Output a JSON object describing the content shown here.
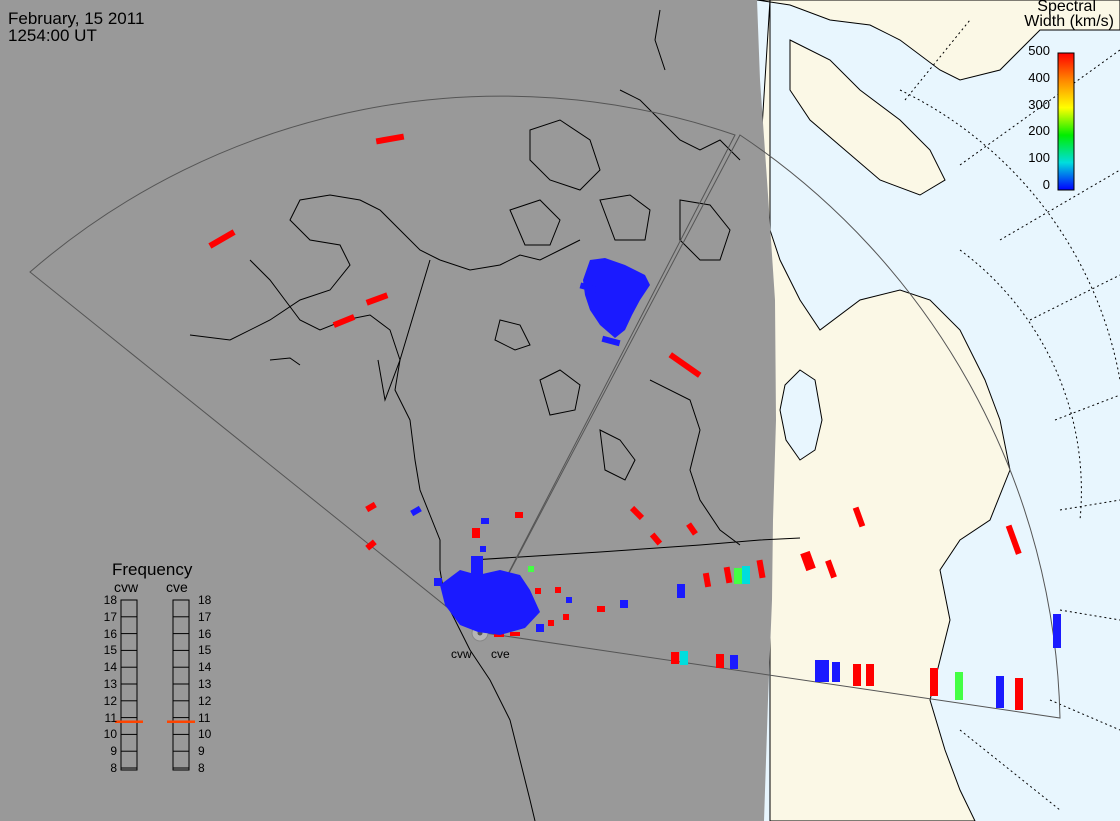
{
  "title": {
    "date": "February, 15 2011",
    "time": "1254:00 UT"
  },
  "colorbar": {
    "title_line1": "Spectral",
    "title_line2": "Width (km/s)",
    "ticks": [
      "500",
      "400",
      "300",
      "200",
      "100",
      "0"
    ],
    "colors": [
      "#ff0000",
      "#ff8800",
      "#ffff00",
      "#00ee00",
      "#00dddd",
      "#0000ff"
    ],
    "min": 0,
    "max": 500
  },
  "radars": {
    "west_label": "cvw",
    "east_label": "cve"
  },
  "frequency_panel": {
    "title": "Frequency",
    "col_west": "cvw",
    "col_east": "cve",
    "ticks": [
      "18",
      "17",
      "16",
      "15",
      "14",
      "13",
      "12",
      "11",
      "10",
      "9",
      "8"
    ],
    "cvw_value_mhz": 10.75,
    "cve_value_mhz": 10.75,
    "marker_color": "#ff4400"
  },
  "colors": {
    "night": "#999999",
    "day_land": "#fbf8e6",
    "day_ocean": "#e8f6fe",
    "coast": "#000000",
    "fov": "#555555"
  }
}
